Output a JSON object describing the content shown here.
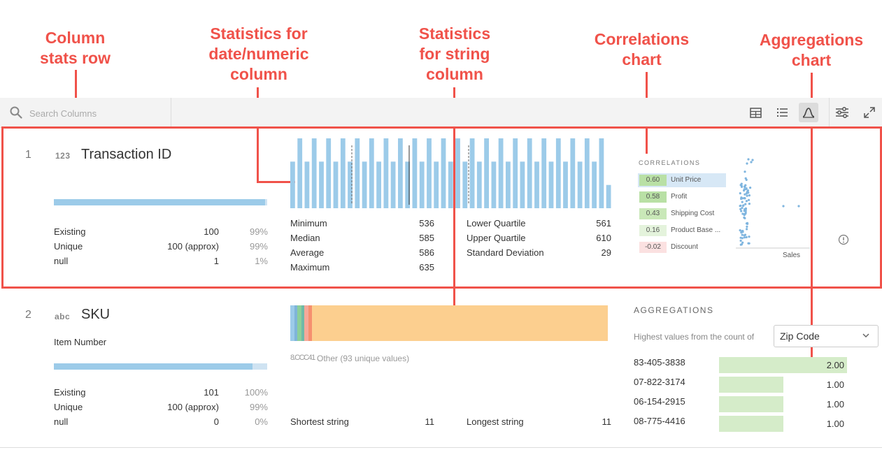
{
  "annotations": {
    "column_stats_row": [
      "Column",
      "stats row"
    ],
    "stats_numeric": [
      "Statistics for",
      "date/numeric",
      "column"
    ],
    "stats_string": [
      "Statistics",
      "for string",
      "column"
    ],
    "correlations": [
      "Correlations",
      "chart"
    ],
    "aggregations": [
      "Aggregations",
      "chart"
    ]
  },
  "toolbar": {
    "search_placeholder": "Search Columns",
    "icons": [
      "search-icon",
      "table-view-icon",
      "list-view-icon",
      "profile-view-icon",
      "settings-sliders-icon",
      "expand-icon"
    ],
    "active_view": "profile"
  },
  "rows": [
    {
      "index": "1",
      "type_glyph": "123",
      "name": "Transaction ID",
      "existing_fill": 0.99,
      "stats": [
        {
          "label": "Existing",
          "value": "100",
          "pct": "99%"
        },
        {
          "label": "Unique",
          "value": "100 (approx)",
          "pct": "99%"
        },
        {
          "label": "null",
          "value": "1",
          "pct": "1%"
        }
      ],
      "numeric": [
        {
          "label": "Minimum",
          "value": "536"
        },
        {
          "label": "Median",
          "value": "585"
        },
        {
          "label": "Average",
          "value": "586"
        },
        {
          "label": "Maximum",
          "value": "635"
        },
        {
          "label": "Lower Quartile",
          "value": "561"
        },
        {
          "label": "Upper Quartile",
          "value": "610"
        },
        {
          "label": "Standard Deviation",
          "value": "29"
        }
      ],
      "histogram": [
        2,
        3,
        2,
        3,
        2,
        3,
        2,
        3,
        2,
        3,
        2,
        3,
        2,
        3,
        2,
        3,
        2,
        3,
        2,
        3,
        2,
        3,
        2,
        3,
        2,
        3,
        2,
        3,
        2,
        3,
        2,
        3,
        2,
        3,
        2,
        3,
        2,
        3,
        2,
        3,
        2,
        3,
        2,
        3,
        1
      ],
      "correlations": {
        "title": "CORRELATIONS",
        "items": [
          {
            "value": "0.60",
            "name": "Unit Price",
            "color": "#b9e0a5"
          },
          {
            "value": "0.58",
            "name": "Profit",
            "color": "#b9e0a5"
          },
          {
            "value": "0.43",
            "name": "Shipping Cost",
            "color": "#c9e8b8"
          },
          {
            "value": "0.16",
            "name": "Product Base ...",
            "color": "#e4f3dc"
          },
          {
            "value": "-0.02",
            "name": "Discount",
            "color": "#fbe1e1"
          }
        ],
        "x_label": "Sales"
      }
    },
    {
      "index": "2",
      "type_glyph": "abc",
      "name": "SKU",
      "subtitle": "Item Number",
      "existing_fill": 0.93,
      "stats": [
        {
          "label": "Existing",
          "value": "101",
          "pct": "100%"
        },
        {
          "label": "Unique",
          "value": "100 (approx)",
          "pct": "99%"
        },
        {
          "label": "null",
          "value": "0",
          "pct": "0%"
        }
      ],
      "string_bar": {
        "segments": [
          {
            "share": 0.012,
            "color": "#9ccbe9"
          },
          {
            "share": 0.01,
            "color": "#7fb5d9"
          },
          {
            "share": 0.012,
            "color": "#8ccf9a"
          },
          {
            "share": 0.01,
            "color": "#6fb9a8"
          },
          {
            "share": 0.012,
            "color": "#f5a99a"
          },
          {
            "share": 0.012,
            "color": "#f6906f"
          },
          {
            "share": 0.922,
            "color": "#fccf8f"
          }
        ],
        "legend_prefix": "8.CCC41",
        "legend": "Other (93 unique values)"
      },
      "strings": [
        {
          "label": "Shortest string",
          "value": "11"
        },
        {
          "label": "Longest string",
          "value": "11"
        }
      ],
      "aggregations": {
        "title": "AGGREGATIONS",
        "caption": "Highest values from the count of",
        "select_value": "Zip Code",
        "items": [
          {
            "key": "83-405-3838",
            "value": "2.00",
            "ratio": 1.0
          },
          {
            "key": "07-822-3174",
            "value": "1.00",
            "ratio": 0.5
          },
          {
            "key": "06-154-2915",
            "value": "1.00",
            "ratio": 0.5
          },
          {
            "key": "08-775-4416",
            "value": "1.00",
            "ratio": 0.5
          }
        ]
      }
    }
  ]
}
